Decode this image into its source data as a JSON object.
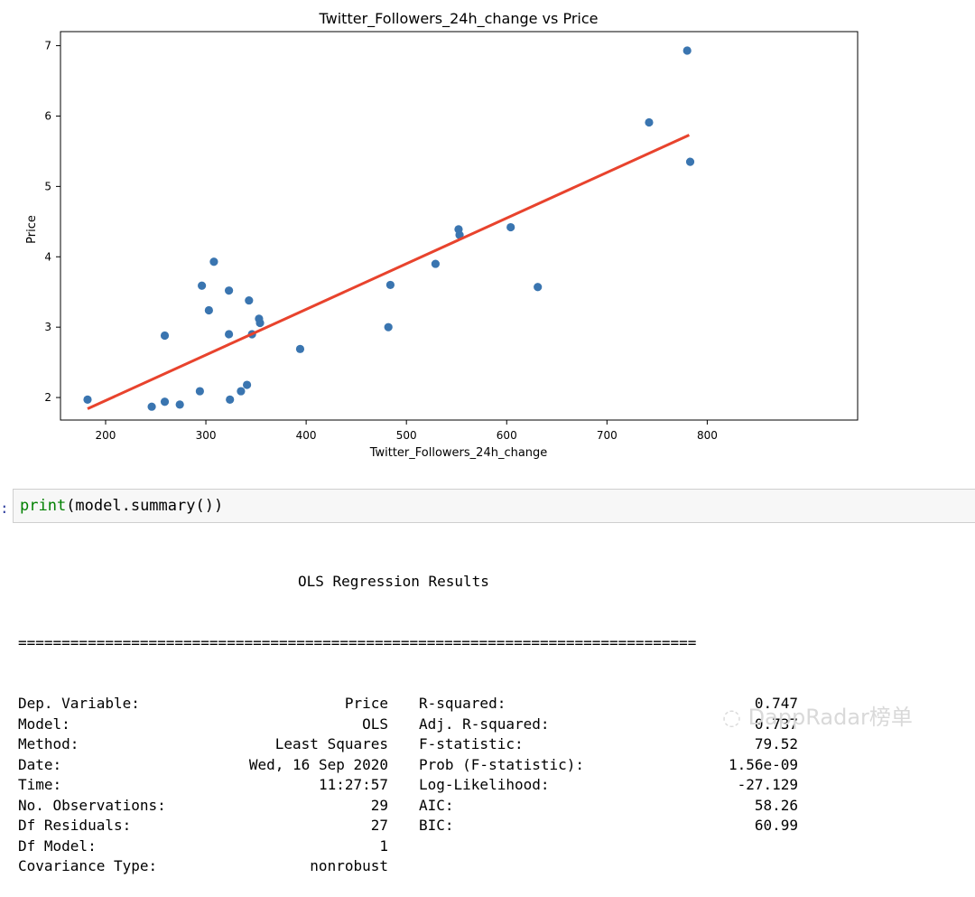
{
  "chart_data": {
    "type": "scatter",
    "title": "Twitter_Followers_24h_change vs Price",
    "xlabel": "Twitter_Followers_24h_change",
    "ylabel": "Price",
    "xlim": [
      155,
      950
    ],
    "ylim": [
      1.68,
      7.2
    ],
    "xticks": [
      200,
      300,
      400,
      500,
      600,
      700,
      800
    ],
    "yticks": [
      2,
      3,
      4,
      5,
      6,
      7
    ],
    "grid": false,
    "points": [
      {
        "x": 182,
        "y": 1.97
      },
      {
        "x": 246,
        "y": 1.87
      },
      {
        "x": 259,
        "y": 1.94
      },
      {
        "x": 274,
        "y": 1.9
      },
      {
        "x": 294,
        "y": 2.09
      },
      {
        "x": 324,
        "y": 1.97
      },
      {
        "x": 335,
        "y": 2.09
      },
      {
        "x": 341,
        "y": 2.18
      },
      {
        "x": 259,
        "y": 2.88
      },
      {
        "x": 296,
        "y": 3.59
      },
      {
        "x": 303,
        "y": 3.24
      },
      {
        "x": 308,
        "y": 3.93
      },
      {
        "x": 323,
        "y": 3.52
      },
      {
        "x": 323,
        "y": 2.9
      },
      {
        "x": 343,
        "y": 3.38
      },
      {
        "x": 346,
        "y": 2.9
      },
      {
        "x": 353,
        "y": 3.12
      },
      {
        "x": 354,
        "y": 3.06
      },
      {
        "x": 394,
        "y": 2.69
      },
      {
        "x": 482,
        "y": 3.0
      },
      {
        "x": 484,
        "y": 3.6
      },
      {
        "x": 529,
        "y": 3.9
      },
      {
        "x": 552,
        "y": 4.39
      },
      {
        "x": 553,
        "y": 4.31
      },
      {
        "x": 604,
        "y": 4.42
      },
      {
        "x": 631,
        "y": 3.57
      },
      {
        "x": 742,
        "y": 5.91
      },
      {
        "x": 780,
        "y": 6.93
      },
      {
        "x": 783,
        "y": 5.35
      }
    ],
    "fit_line": {
      "x": [
        182,
        782
      ],
      "y": [
        1.84,
        5.73
      ]
    },
    "colors": {
      "points": "#3a75b0",
      "fit": "#e8432d"
    }
  },
  "code_cell": {
    "prompt": ":",
    "func": "print",
    "rest": "(model.summary())"
  },
  "summary": {
    "title": "OLS Regression Results",
    "separator": "==============================================================================",
    "rows": [
      {
        "l1": "Dep. Variable:",
        "v1": "Price",
        "l2": "R-squared:",
        "v2": "0.747"
      },
      {
        "l1": "Model:",
        "v1": "OLS",
        "l2": "Adj. R-squared:",
        "v2": "0.737"
      },
      {
        "l1": "Method:",
        "v1": "Least Squares",
        "l2": "F-statistic:",
        "v2": "79.52"
      },
      {
        "l1": "Date:",
        "v1": "Wed, 16 Sep 2020",
        "l2": "Prob (F-statistic):",
        "v2": "1.56e-09"
      },
      {
        "l1": "Time:",
        "v1": "11:27:57",
        "l2": "Log-Likelihood:",
        "v2": "-27.129"
      },
      {
        "l1": "No. Observations:",
        "v1": "29",
        "l2": "AIC:",
        "v2": "58.26"
      },
      {
        "l1": "Df Residuals:",
        "v1": "27",
        "l2": "BIC:",
        "v2": "60.99"
      },
      {
        "l1": "Df Model:",
        "v1": "1",
        "l2": "",
        "v2": ""
      },
      {
        "l1": "Covariance Type:",
        "v1": "nonrobust",
        "l2": "",
        "v2": ""
      }
    ]
  },
  "watermark": "DappRadar榜单"
}
